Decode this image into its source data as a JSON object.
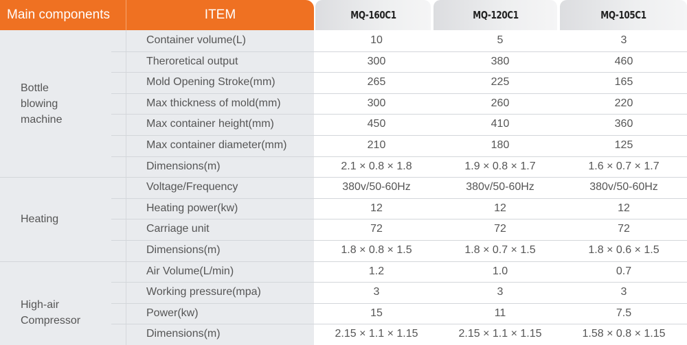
{
  "header": {
    "main_components": "Main components",
    "item": "ITEM",
    "models": [
      "MQ-160C1",
      "MQ-120C1",
      "MQ-105C1"
    ]
  },
  "colors": {
    "accent": "#ef7122",
    "label_bg": "#e9ebee"
  },
  "groups": [
    {
      "name": "Bottle\nblowing\nmachine",
      "rows": [
        {
          "item": "Container volume(L)",
          "values": [
            "10",
            "5",
            "3"
          ]
        },
        {
          "item": "Theroretical output",
          "values": [
            "300",
            "380",
            "460"
          ]
        },
        {
          "item": "Mold Opening Stroke(mm)",
          "values": [
            "265",
            "225",
            "165"
          ]
        },
        {
          "item": "Max thickness of mold(mm)",
          "values": [
            "300",
            "260",
            "220"
          ]
        },
        {
          "item": "Max container height(mm)",
          "values": [
            "450",
            "410",
            "360"
          ]
        },
        {
          "item": "Max container diameter(mm)",
          "values": [
            "210",
            "180",
            "125"
          ]
        },
        {
          "item": "Dimensions(m)",
          "values": [
            "2.1 × 0.8 × 1.8",
            "1.9 × 0.8 × 1.7",
            "1.6 × 0.7 × 1.7"
          ]
        }
      ]
    },
    {
      "name": "Heating",
      "rows": [
        {
          "item": "Voltage/Frequency",
          "values": [
            "380v/50-60Hz",
            "380v/50-60Hz",
            "380v/50-60Hz"
          ]
        },
        {
          "item": "Heating power(kw)",
          "values": [
            "12",
            "12",
            "12"
          ]
        },
        {
          "item": "Carriage unit",
          "values": [
            "72",
            "72",
            "72"
          ]
        },
        {
          "item": "Dimensions(m)",
          "values": [
            "1.8 × 0.8 × 1.5",
            "1.8 × 0.7 × 1.5",
            "1.8 × 0.6 × 1.5"
          ]
        }
      ]
    },
    {
      "name": "High-air\nCompressor",
      "rows": [
        {
          "item": "Air Volume(L/min)",
          "values": [
            "1.2",
            "1.0",
            "0.7"
          ]
        },
        {
          "item": "Working pressure(mpa)",
          "values": [
            "3",
            "3",
            "3"
          ]
        },
        {
          "item": "Power(kw)",
          "values": [
            "15",
            "11",
            "7.5"
          ]
        },
        {
          "item": "Dimensions(m)",
          "values": [
            "2.15 × 1.1 × 1.15",
            "2.15 × 1.1 × 1.15",
            "1.58 × 0.8 × 1.15"
          ]
        }
      ]
    }
  ]
}
